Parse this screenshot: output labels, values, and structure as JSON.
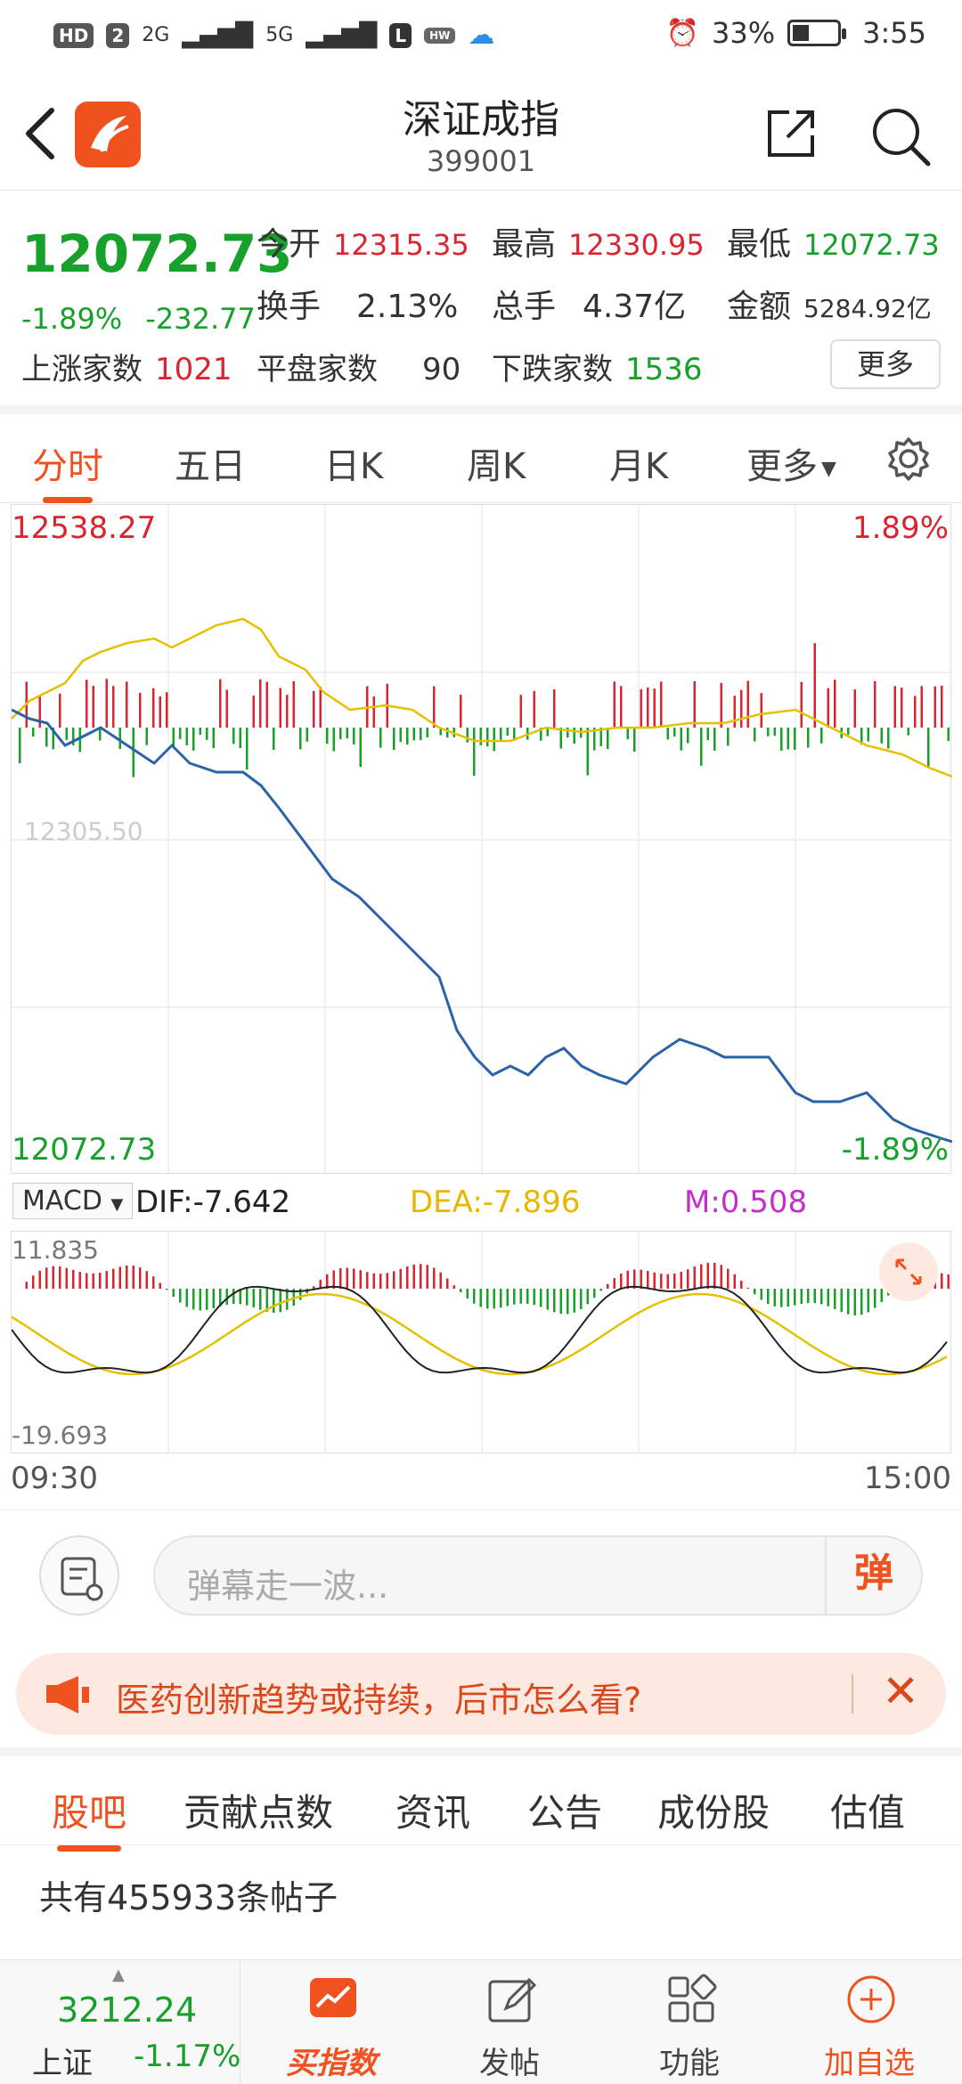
{
  "status_bar": {
    "left_badges": [
      "HD",
      "2",
      "2G",
      "5G"
    ],
    "battery": "33%",
    "battery_level": 0.33,
    "time": "3:55"
  },
  "header": {
    "title": "深证成指",
    "code": "399001",
    "icons": [
      "back-arrow-icon",
      "app-logo-icon",
      "share-icon",
      "search-icon"
    ]
  },
  "quote": {
    "price": "12072.73",
    "change_pct": "-1.89%",
    "change_abs": "-232.77",
    "open_label": "今开",
    "open": "12315.35",
    "high_label": "最高",
    "high": "12330.95",
    "low_label": "最低",
    "low": "12072.73",
    "turnover_label": "换手",
    "turnover": "2.13%",
    "volume_label": "总手",
    "volume": "4.37亿",
    "amount_label": "金额",
    "amount": "5284.92亿",
    "up_label": "上涨家数",
    "up": "1021",
    "flat_label": "平盘家数",
    "flat": "90",
    "down_label": "下跌家数",
    "down": "1536",
    "more": "更多"
  },
  "chart_tabs": [
    "分时",
    "五日",
    "日K",
    "周K",
    "月K",
    "更多"
  ],
  "chart": {
    "top_price": "12538.27",
    "bottom_price": "12072.73",
    "top_pct": "1.89%",
    "bottom_pct": "-1.89%",
    "mid_watermark": "12305.50"
  },
  "macd": {
    "selector": "MACD",
    "dif": "DIF:-7.642",
    "dea": "DEA:-7.896",
    "m": "M:0.508",
    "top": "11.835",
    "bottom": "-19.693"
  },
  "time_axis": {
    "start": "09:30",
    "end": "15:00"
  },
  "danmu": {
    "placeholder": "弹幕走一波...",
    "button": "弹"
  },
  "notice": {
    "text": "医药创新趋势或持续，后市怎么看?"
  },
  "lower_tabs": [
    "股吧",
    "贡献点数",
    "资讯",
    "公告",
    "成份股",
    "估值"
  ],
  "post_count": "共有455933条帖子",
  "bottom_nav": {
    "index_value": "3212.24",
    "index_name": "上证",
    "index_change": "-1.17%",
    "items": [
      "买指数",
      "发帖",
      "功能",
      "加自选"
    ]
  },
  "colors": {
    "up": "#d9252f",
    "down": "#17a12b",
    "accent": "#f0521f",
    "price_line": "#2a63a8",
    "avg_line": "#e6c000"
  }
}
